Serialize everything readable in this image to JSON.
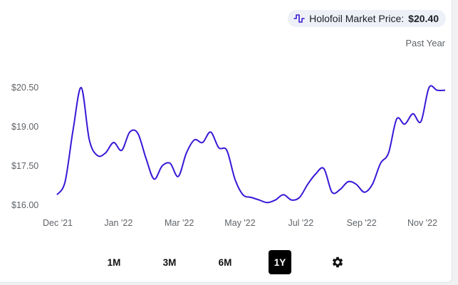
{
  "header": {
    "price_label": "Holofoil Market Price:",
    "price_value": "$20.40",
    "period_label": "Past Year"
  },
  "ranges": {
    "buttons": [
      {
        "label": "1M",
        "active": false
      },
      {
        "label": "3M",
        "active": false
      },
      {
        "label": "6M",
        "active": false
      },
      {
        "label": "1Y",
        "active": true
      }
    ],
    "settings_icon": "gear-icon"
  },
  "icons": {
    "price_icon": "pulse-icon"
  },
  "colors": {
    "line": "#3a17d6",
    "active_button": "#000000"
  },
  "chart_data": {
    "type": "line",
    "title": "",
    "xlabel": "",
    "ylabel": "",
    "y_ticks": [
      "$16.00",
      "$17.50",
      "$19.00",
      "$20.50"
    ],
    "x_ticks": [
      "Dec '21",
      "Jan '22",
      "Mar '22",
      "May '22",
      "Jul '22",
      "Sep '22",
      "Nov '22"
    ],
    "ylim": [
      16.0,
      20.5
    ],
    "grid": false,
    "series": [
      {
        "values": [
          16.4,
          16.9,
          18.9,
          20.5,
          18.5,
          17.9,
          18.0,
          18.4,
          18.1,
          18.8,
          18.75,
          17.8,
          17.0,
          17.5,
          17.6,
          17.1,
          18.0,
          18.5,
          18.4,
          18.8,
          18.2,
          18.1,
          17.0,
          16.4,
          16.3,
          16.2,
          16.1,
          16.2,
          16.4,
          16.2,
          16.3,
          16.8,
          17.2,
          17.4,
          16.5,
          16.6,
          16.9,
          16.8,
          16.5,
          16.8,
          17.6,
          18.0,
          19.3,
          19.1,
          19.5,
          19.2,
          20.5,
          20.4,
          20.4
        ]
      }
    ]
  }
}
